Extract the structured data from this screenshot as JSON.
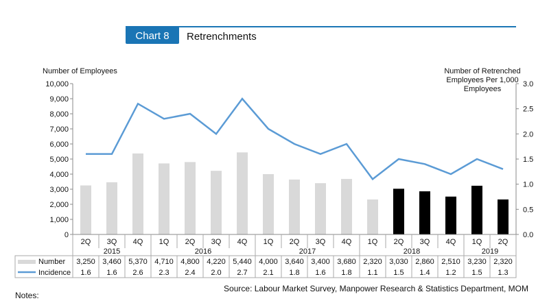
{
  "header": {
    "chart_number": "Chart 8",
    "title": "Retrenchments",
    "accent_color": "#1a75b5"
  },
  "notes_label": "Notes:",
  "chart_data": {
    "type": "bar+line",
    "title": "Retrenchments",
    "ylabel_left": "Number of Employees",
    "ylabel_right": "Number of Retrenched Employees Per 1,000 Employees",
    "ylabel_right_lines": [
      "Number of Retrenched",
      "Employees Per 1,000",
      "Employees"
    ],
    "ylim_left": [
      0,
      10000
    ],
    "yticks_left": [
      "0",
      "1,000",
      "2,000",
      "3,000",
      "4,000",
      "5,000",
      "6,000",
      "7,000",
      "8,000",
      "9,000",
      "10,000"
    ],
    "ylim_right": [
      0,
      3.0
    ],
    "yticks_right": [
      "0.0",
      "0.5",
      "1.0",
      "1.5",
      "2.0",
      "2.5",
      "3.0"
    ],
    "quarters": [
      "2Q",
      "3Q",
      "4Q",
      "1Q",
      "2Q",
      "3Q",
      "4Q",
      "1Q",
      "2Q",
      "3Q",
      "4Q",
      "1Q",
      "2Q",
      "3Q",
      "4Q",
      "1Q",
      "2Q"
    ],
    "years": [
      {
        "label": "2015",
        "span": 3
      },
      {
        "label": "2016",
        "span": 4
      },
      {
        "label": "2017",
        "span": 4
      },
      {
        "label": "2018",
        "span": 4
      },
      {
        "label": "2019",
        "span": 2
      }
    ],
    "series": [
      {
        "name": "Number",
        "type": "bar",
        "color": "#d9d9d9",
        "highlight_color": "#000000",
        "highlight_from_index": 12,
        "values": [
          3250,
          3460,
          5370,
          4710,
          4800,
          4220,
          5440,
          4000,
          3640,
          3400,
          3680,
          2320,
          3030,
          2860,
          2510,
          3230,
          2320
        ],
        "labels": [
          "3,250",
          "3,460",
          "5,370",
          "4,710",
          "4,800",
          "4,220",
          "5,440",
          "4,000",
          "3,640",
          "3,400",
          "3,680",
          "2,320",
          "3,030",
          "2,860",
          "2,510",
          "3,230",
          "2,320"
        ]
      },
      {
        "name": "Incidence",
        "type": "line",
        "axis": "right",
        "color": "#5b9bd5",
        "values": [
          1.6,
          1.6,
          2.6,
          2.3,
          2.4,
          2.0,
          2.7,
          2.1,
          1.8,
          1.6,
          1.8,
          1.1,
          1.5,
          1.4,
          1.2,
          1.5,
          1.3
        ],
        "labels": [
          "1.6",
          "1.6",
          "2.6",
          "2.3",
          "2.4",
          "2.0",
          "2.7",
          "2.1",
          "1.8",
          "1.6",
          "1.8",
          "1.1",
          "1.5",
          "1.4",
          "1.2",
          "1.5",
          "1.3"
        ]
      }
    ],
    "legend": "data-table-bottom",
    "source": "Source: Labour Market Survey, Manpower Research & Statistics Department, MOM"
  }
}
